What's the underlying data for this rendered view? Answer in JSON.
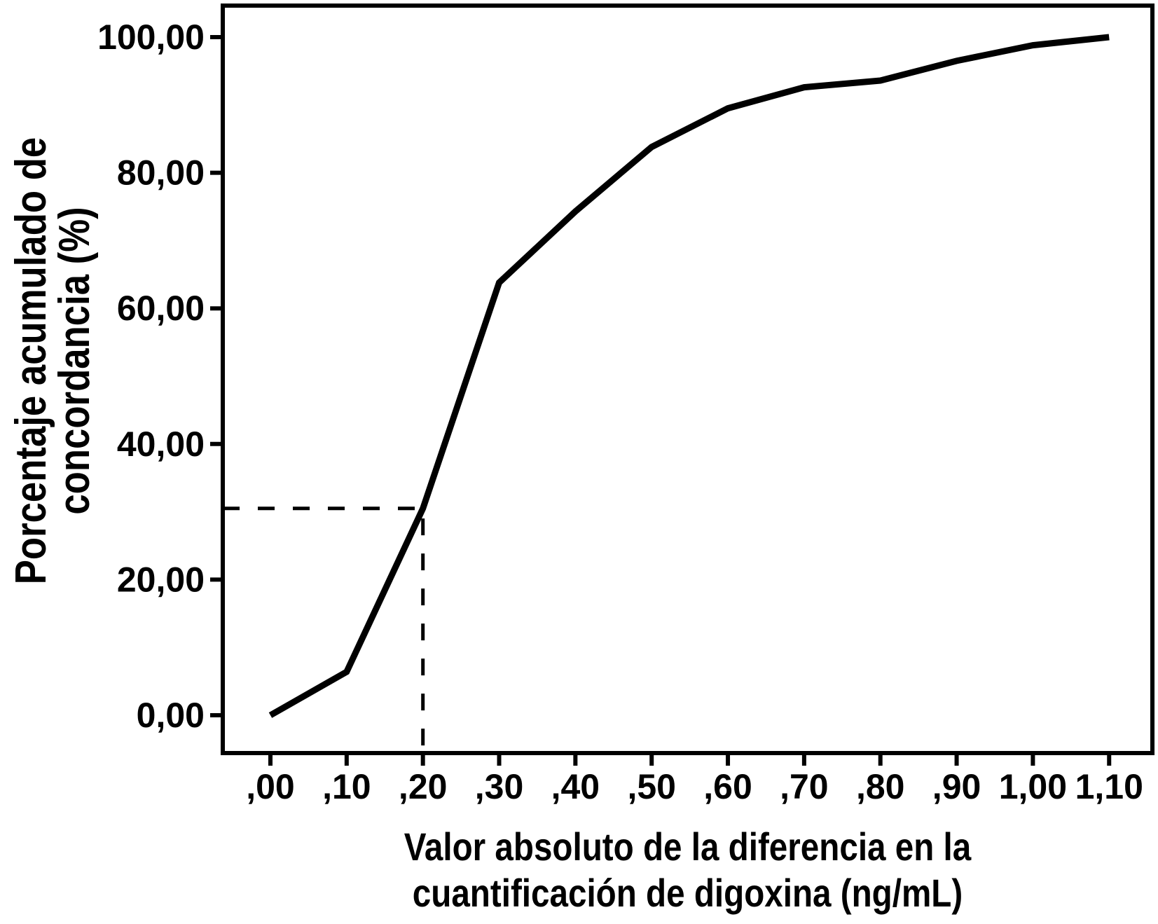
{
  "chart_data": {
    "type": "line",
    "title": "",
    "xlabel_line1": "Valor absoluto de la diferencia en la",
    "xlabel_line2": "cuantificación de digoxina (ng/mL)",
    "ylabel_line1": "Porcentaje acumulado de",
    "ylabel_line2": "concordancia (%)",
    "x": [
      0.0,
      0.1,
      0.2,
      0.3,
      0.4,
      0.5,
      0.6,
      0.7,
      0.8,
      0.9,
      1.0,
      1.1
    ],
    "values": [
      0.0,
      6.4,
      30.5,
      63.8,
      74.3,
      83.8,
      89.5,
      92.6,
      93.6,
      96.5,
      98.8,
      100.0
    ],
    "series_name": "Porcentaje acumulado de concordancia",
    "x_tick_values": [
      0.0,
      0.1,
      0.2,
      0.3,
      0.4,
      0.5,
      0.6,
      0.7,
      0.8,
      0.9,
      1.0,
      1.1
    ],
    "x_tick_labels": [
      ",00",
      ",10",
      ",20",
      ",30",
      ",40",
      ",50",
      ",60",
      ",70",
      ",80",
      ",90",
      "1,00",
      "1,10"
    ],
    "y_tick_values": [
      0,
      20,
      40,
      60,
      80,
      100
    ],
    "y_tick_labels": [
      "0,00",
      "20,00",
      "40,00",
      "60,00",
      "80,00",
      "100,00"
    ],
    "xlim": [
      -0.06,
      1.16
    ],
    "ylim": [
      -5.5,
      105.5
    ],
    "grid": false,
    "legend": "none",
    "reference_point": {
      "x": 0.2,
      "y": 30.5,
      "style": "dashed"
    },
    "line_color": "#000000",
    "axis_color": "#000000",
    "background_color": "#ffffff"
  }
}
